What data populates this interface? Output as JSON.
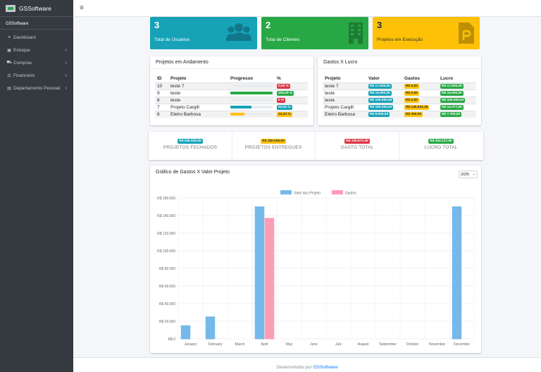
{
  "brand": {
    "name": "GSSoftware"
  },
  "user": {
    "name": "GSSoftware"
  },
  "sidebar": {
    "items": [
      {
        "label": "Dashboard",
        "icon": "dashboard-icon",
        "caret": ""
      },
      {
        "label": "Estoque",
        "icon": "box-icon",
        "caret": "‹"
      },
      {
        "label": "Compras",
        "icon": "cart-icon",
        "caret": "‹"
      },
      {
        "label": "Financeiro",
        "icon": "money-icon",
        "caret": "‹"
      },
      {
        "label": "Departamento Pessoal",
        "icon": "id-card-icon",
        "caret": "‹"
      }
    ]
  },
  "topbar": {
    "menu_icon": "≡"
  },
  "info_boxes": [
    {
      "value": "3",
      "label": "Total de Usuários",
      "color": "#17a2b8",
      "icon": "users-icon"
    },
    {
      "value": "2",
      "label": "Total de Clientes",
      "color": "#28a745",
      "icon": "building-icon"
    },
    {
      "value": "3",
      "label": "Projetos em Execução",
      "color": "#ffc107",
      "icon": "parking-file-icon"
    }
  ],
  "projects_card": {
    "title": "Projetos em Andamento",
    "headers": [
      "ID",
      "Projeto",
      "Progresso",
      "%"
    ],
    "rows": [
      {
        "id": "10",
        "name": "teste 7",
        "progress": 0,
        "pct": "0,00 %",
        "color": "#dc3545"
      },
      {
        "id": "9",
        "name": "teste",
        "progress": 100,
        "pct": "100,00 %",
        "color": "#28a745"
      },
      {
        "id": "8",
        "name": "teste",
        "progress": 0,
        "pct": "0 %",
        "color": "#dc3545"
      },
      {
        "id": "7",
        "name": "Projeto Cargill",
        "progress": 50,
        "pct": "50,00 %",
        "color": "#17a2b8"
      },
      {
        "id": "6",
        "name": "Eletro Barbosa",
        "progress": 33.33,
        "pct": "33,33 %",
        "color": "#ffc107"
      }
    ]
  },
  "expenses_card": {
    "title": "Gastos X Lucro",
    "headers": [
      "Projeto",
      "Valor",
      "Gastos",
      "Lucro"
    ],
    "rows": [
      {
        "name": "teste 7",
        "valor": "R$ 17.000,00",
        "gastos": "R$ 0,00",
        "lucro": "R$ 17.000,00"
      },
      {
        "name": "teste",
        "valor": "R$ 15.000,00",
        "gastos": "R$ 0,00",
        "lucro": "R$ 15.000,00"
      },
      {
        "name": "teste",
        "valor": "R$ 100.000,00",
        "gastos": "R$ 0,00",
        "lucro": "R$ 100.000,00"
      },
      {
        "name": "Projeto Cargill",
        "valor": "R$ 150.000,00",
        "gastos": "R$ 135.622,35",
        "lucro": "R$ 14.377,65"
      },
      {
        "name": "Eletro Barbosa",
        "valor": "R$ 8.000,00",
        "gastos": "R$ 250,00",
        "lucro": "R$ 7.750,00"
      }
    ]
  },
  "stats": [
    {
      "value": "R$ 240.000,00",
      "label": "PROJETOS FECHADOS",
      "color": "#17a2b8"
    },
    {
      "value": "R$ 150.000,00",
      "label": "PROJETOS ENTREGUES",
      "color": "#ffc107"
    },
    {
      "value": "R$ 135.872,35",
      "label": "GASTO TOTAL",
      "color": "#dc3545"
    },
    {
      "value": "R$ 204.127,65",
      "label": "LUCRO TOTAL",
      "color": "#28a745"
    }
  ],
  "chart_card": {
    "title": "Gráfico de Gastos X Valor Projeto",
    "year": "2025"
  },
  "chart_data": {
    "type": "bar",
    "title": "",
    "xlabel": "",
    "ylabel": "",
    "categories": [
      "January",
      "February",
      "March",
      "April",
      "May",
      "June",
      "July",
      "August",
      "September",
      "October",
      "November",
      "December"
    ],
    "series": [
      {
        "name": "Valor dos Projeto",
        "color": "#74b9e9",
        "values": [
          15000,
          25000,
          0,
          150000,
          0,
          0,
          0,
          0,
          0,
          0,
          0,
          150000
        ]
      },
      {
        "name": "Gastos",
        "color": "#ff9db4",
        "values": [
          0,
          0,
          0,
          137000,
          0,
          0,
          0,
          0,
          0,
          0,
          0,
          0
        ]
      }
    ],
    "ylim": [
      0,
      160000
    ],
    "yticks": [
      "R$ 0",
      "R$ 20.000",
      "R$ 40.000",
      "R$ 60.000",
      "R$ 80.000",
      "R$ 100.000",
      "R$ 120.000",
      "R$ 140.000",
      "R$ 160.000"
    ],
    "grid": true,
    "legend": "top"
  },
  "footer": {
    "text": "Desenvolvido por",
    "link": "GSSoftware"
  }
}
